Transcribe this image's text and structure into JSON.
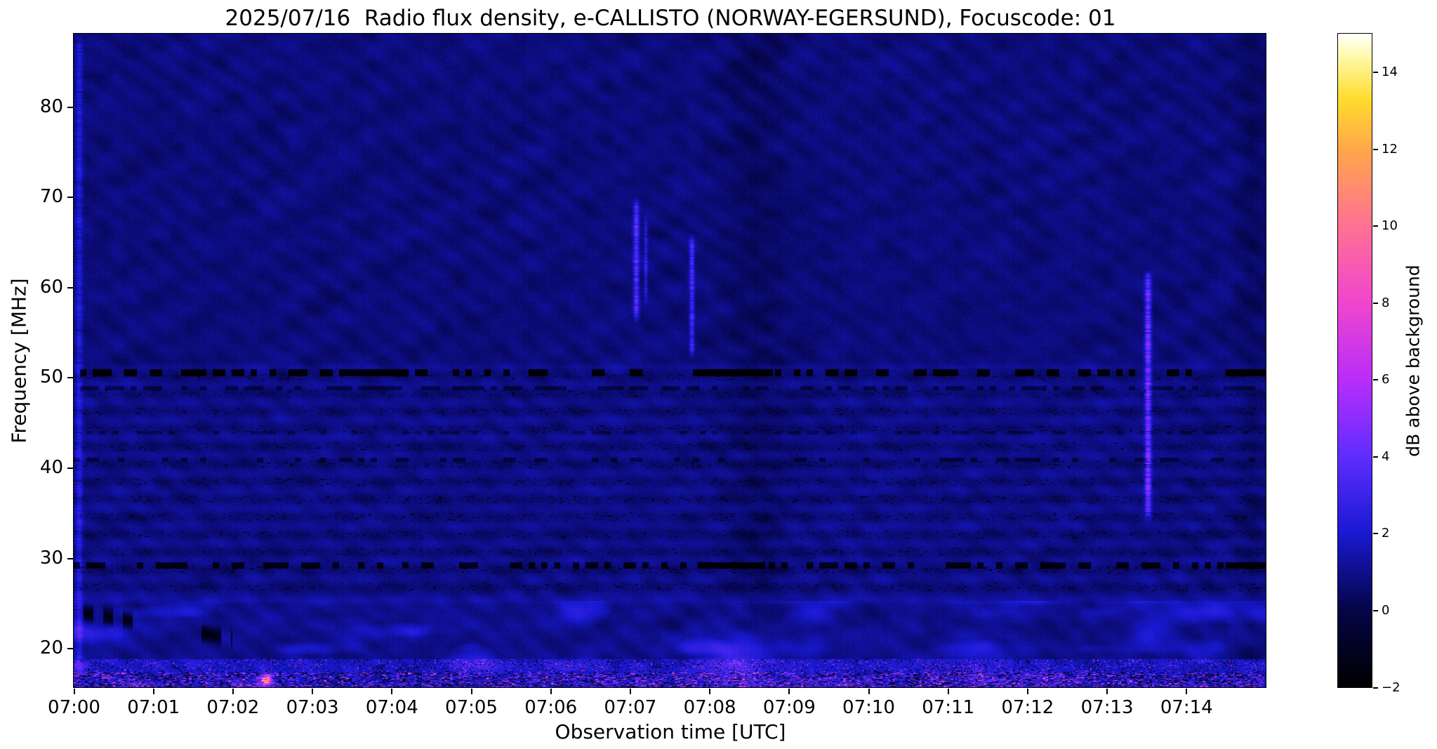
{
  "chart_data": {
    "type": "heatmap",
    "title": "2025/07/16  Radio flux density, e-CALLISTO (NORWAY-EGERSUND), Focuscode: 01",
    "xlabel": "Observation time [UTC]",
    "ylabel": "Frequency [MHz]",
    "colorbar_label": "dB above background",
    "x_range_minutes": [
      0,
      15
    ],
    "x_ticks": [
      {
        "t_min": 0,
        "label": "07:00"
      },
      {
        "t_min": 1,
        "label": "07:01"
      },
      {
        "t_min": 2,
        "label": "07:02"
      },
      {
        "t_min": 3,
        "label": "07:03"
      },
      {
        "t_min": 4,
        "label": "07:04"
      },
      {
        "t_min": 5,
        "label": "07:05"
      },
      {
        "t_min": 6,
        "label": "07:06"
      },
      {
        "t_min": 7,
        "label": "07:07"
      },
      {
        "t_min": 8,
        "label": "07:08"
      },
      {
        "t_min": 9,
        "label": "07:09"
      },
      {
        "t_min": 10,
        "label": "07:10"
      },
      {
        "t_min": 11,
        "label": "07:11"
      },
      {
        "t_min": 12,
        "label": "07:12"
      },
      {
        "t_min": 13,
        "label": "07:13"
      },
      {
        "t_min": 14,
        "label": "07:14"
      }
    ],
    "y_range_mhz": [
      15.7,
      88.1
    ],
    "y_ticks": [
      {
        "value": 20,
        "label": "20"
      },
      {
        "value": 30,
        "label": "30"
      },
      {
        "value": 40,
        "label": "40"
      },
      {
        "value": 50,
        "label": "50"
      },
      {
        "value": 60,
        "label": "60"
      },
      {
        "value": 70,
        "label": "70"
      },
      {
        "value": 80,
        "label": "80"
      }
    ],
    "colorbar_range_db": [
      -2,
      15
    ],
    "colorbar_ticks": [
      {
        "value": -2,
        "label": "−2"
      },
      {
        "value": 0,
        "label": "0"
      },
      {
        "value": 2,
        "label": "2"
      },
      {
        "value": 4,
        "label": "4"
      },
      {
        "value": 6,
        "label": "6"
      },
      {
        "value": 8,
        "label": "8"
      },
      {
        "value": 10,
        "label": "10"
      },
      {
        "value": 12,
        "label": "12"
      },
      {
        "value": 14,
        "label": "14"
      }
    ],
    "colormap": [
      [
        0.0,
        0,
        0,
        0
      ],
      [
        0.118,
        5,
        5,
        72
      ],
      [
        0.235,
        25,
        25,
        210
      ],
      [
        0.353,
        95,
        45,
        255
      ],
      [
        0.47,
        185,
        45,
        250
      ],
      [
        0.59,
        240,
        70,
        205
      ],
      [
        0.71,
        255,
        115,
        145
      ],
      [
        0.82,
        255,
        165,
        75
      ],
      [
        0.9,
        255,
        220,
        45
      ],
      [
        0.965,
        255,
        250,
        170
      ],
      [
        1.0,
        255,
        255,
        255
      ]
    ],
    "texture": {
      "base_level": 0.45,
      "pixel_noise": 0.55,
      "ripple_amp_1": 0.17,
      "ripple_amp_2": 0.14,
      "band_region": {
        "f_lo": 25.3,
        "f_hi": 50.4,
        "stripe_period_mhz": 1.95,
        "stripe_amp": 0.2,
        "extra": 0.12,
        "dark_speckle_prob": 0.07
      },
      "bottom_region": {
        "f_lo": 25.3,
        "bright_band_f": 18.8,
        "lowest_f": 17.3
      }
    },
    "features": [
      {
        "kind": "vline",
        "t": 0.07,
        "sigma": 0.03,
        "f_lo": 15.7,
        "f_hi": 88.1,
        "amp": 1.5
      },
      {
        "kind": "vline",
        "t": 7.08,
        "sigma": 0.025,
        "f_lo": 56,
        "f_hi": 70,
        "amp": 3.0
      },
      {
        "kind": "vline",
        "t": 7.2,
        "sigma": 0.016,
        "f_lo": 58,
        "f_hi": 68,
        "amp": 1.8
      },
      {
        "kind": "vline",
        "t": 7.78,
        "sigma": 0.022,
        "f_lo": 52,
        "f_hi": 66,
        "amp": 2.6
      },
      {
        "kind": "vline",
        "t": 13.52,
        "sigma": 0.028,
        "f_lo": 34,
        "f_hi": 62,
        "amp": 3.8
      },
      {
        "kind": "hline",
        "f": 25.35,
        "sigma": 0.25,
        "amp": 0.4
      },
      {
        "kind": "hline",
        "f": 51.15,
        "sigma": 0.25,
        "amp": 0.35
      },
      {
        "kind": "dark_hband",
        "f": 50.55,
        "half": 0.4,
        "amp": -2.6,
        "keep": 0.5,
        "strong": [
          [
            7.85,
            8.8
          ],
          [
            14.5,
            15
          ]
        ]
      },
      {
        "kind": "dark_hband",
        "f": 29.2,
        "half": 0.35,
        "amp": -2.3,
        "keep": 0.42,
        "strong": [
          [
            7.85,
            8.7
          ],
          [
            14.5,
            15
          ]
        ]
      },
      {
        "kind": "dark_hband",
        "f": 48.85,
        "half": 0.22,
        "amp": -1.0,
        "keep": 0.55,
        "strong": []
      },
      {
        "kind": "dark_hband",
        "f": 40.9,
        "half": 0.26,
        "amp": -1.1,
        "keep": 0.3,
        "strong": []
      },
      {
        "kind": "dark_hband",
        "f": 43.9,
        "half": 0.2,
        "amp": -0.7,
        "keep": 0.3,
        "strong": []
      },
      {
        "kind": "dark_column",
        "t": 8.6,
        "sigma": 0.27,
        "amp": -0.4
      },
      {
        "kind": "dark_column",
        "t": 14.82,
        "sigma": 0.12,
        "amp": -0.35
      },
      {
        "kind": "blob",
        "t": 8.38,
        "f": 18.8,
        "sigma_t": 0.3,
        "sigma_f": 2.0,
        "amp": 2.2
      },
      {
        "kind": "blob",
        "t": 0.25,
        "f": 21.7,
        "sigma_t": 0.3,
        "sigma_f": 0.7,
        "amp": 1.8
      },
      {
        "kind": "blob",
        "t": 2.42,
        "f": 16.5,
        "sigma_t": 0.05,
        "sigma_f": 0.45,
        "amp": 9.0
      },
      {
        "kind": "dark_diag",
        "t0": 0.12,
        "f0": 24.0,
        "t1": 2.0,
        "f1": 21.1,
        "half": 0.55,
        "amp": -2.5,
        "keep": 0.6
      },
      {
        "kind": "speckle_boost",
        "t0": 10.65,
        "t1": 11.45,
        "f_hi": 18.4,
        "prob": 0.12,
        "amp": 2.5
      }
    ]
  }
}
